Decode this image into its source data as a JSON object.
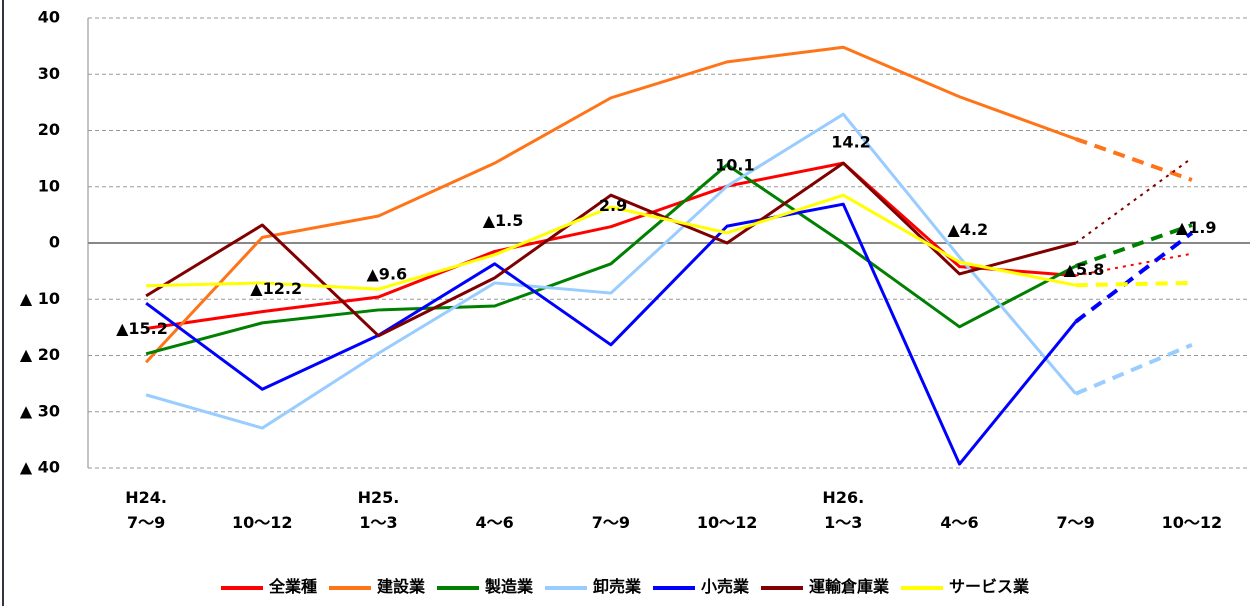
{
  "chart_data": {
    "type": "line",
    "categories": [
      "H24.\n7〜9",
      "10〜12",
      "H25.\n1〜3",
      "4〜6",
      "7〜9",
      "10〜12",
      "H26.\n1〜3",
      "4〜6",
      "7〜9",
      "10〜12"
    ],
    "ylim": [
      -40,
      40
    ],
    "yticks": [
      {
        "value": -40,
        "label": "▲ 40"
      },
      {
        "value": -30,
        "label": "▲ 30"
      },
      {
        "value": -20,
        "label": "▲ 20"
      },
      {
        "value": -10,
        "label": "▲ 10"
      },
      0,
      10,
      20,
      30,
      40
    ],
    "grid": true,
    "dashed_from": 8,
    "legend": "bottom",
    "series": [
      {
        "name": "全業種",
        "color": "#ff0000",
        "values": [
          -15.2,
          -12.2,
          -9.6,
          -1.5,
          2.9,
          10.1,
          14.2,
          -4.2,
          -5.8,
          -1.9
        ],
        "value_labels": [
          "▲15.2",
          "▲12.2",
          "▲9.6",
          "▲1.5",
          "2.9",
          "10.1",
          "14.2",
          "▲4.2",
          "▲5.8",
          "▲1.9"
        ]
      },
      {
        "name": "建設業",
        "color": "#ff7418",
        "values": [
          -21.2,
          1,
          4.8,
          14.2,
          25.8,
          32.2,
          34.8,
          26,
          18.5,
          11.2
        ]
      },
      {
        "name": "製造業",
        "color": "#008000",
        "values": [
          -19.7,
          -14.2,
          -11.9,
          -11.2,
          -3.7,
          13.9,
          0,
          -14.9,
          -4.1,
          3.2
        ]
      },
      {
        "name": "卸売業",
        "color": "#99ccff",
        "values": [
          -27,
          -32.9,
          -19.6,
          -7.1,
          -8.9,
          10.1,
          22.9,
          -2.5,
          -26.8,
          -18.1
        ]
      },
      {
        "name": "小売業",
        "color": "#0000ff",
        "values": [
          -10.7,
          -26,
          -16.4,
          -3.7,
          -18.1,
          3,
          6.9,
          -39.3,
          -14,
          1.8
        ]
      },
      {
        "name": "運輸倉庫業",
        "color": "#800000",
        "values": [
          -9.4,
          3.2,
          -16.5,
          -6.2,
          8.5,
          0,
          14.2,
          -5.5,
          0,
          15.1
        ]
      },
      {
        "name": "サービス業",
        "color": "#ffff00",
        "values": [
          -7.6,
          -7.1,
          -8.2,
          -2.1,
          6.4,
          1.8,
          8.5,
          -3.4,
          -7.5,
          -7.1
        ]
      }
    ]
  }
}
